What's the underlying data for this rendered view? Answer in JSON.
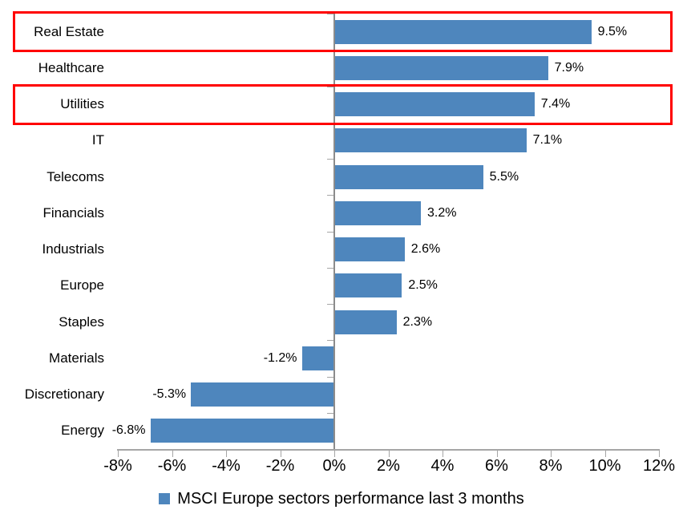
{
  "chart_data": {
    "type": "bar",
    "orientation": "horizontal",
    "title": "",
    "xlabel": "",
    "ylabel": "",
    "categories": [
      "Real Estate",
      "Healthcare",
      "Utilities",
      "IT",
      "Telecoms",
      "Financials",
      "Industrials",
      "Europe",
      "Staples",
      "Materials",
      "Discretionary",
      "Energy"
    ],
    "values": [
      9.5,
      7.9,
      7.4,
      7.1,
      5.5,
      3.2,
      2.6,
      2.5,
      2.3,
      -1.2,
      -5.3,
      -6.8
    ],
    "data_labels": [
      "9.5%",
      "7.9%",
      "7.4%",
      "7.1%",
      "5.5%",
      "3.2%",
      "2.6%",
      "2.5%",
      "2.3%",
      "-1.2%",
      "-5.3%",
      "-6.8%"
    ],
    "xlim": [
      -8,
      12
    ],
    "x_ticks": [
      "-8%",
      "-6%",
      "-4%",
      "-2%",
      "0%",
      "2%",
      "4%",
      "6%",
      "8%",
      "10%",
      "12%"
    ],
    "grid": "off",
    "legend": "MSCI Europe sectors performance last 3 months",
    "legend_position": "bottom-center",
    "bar_color": "#4E86BD",
    "axis_color": "#A6A6A6",
    "highlight_color": "#FF0000",
    "highlighted_categories": [
      "Real Estate",
      "Utilities"
    ]
  }
}
